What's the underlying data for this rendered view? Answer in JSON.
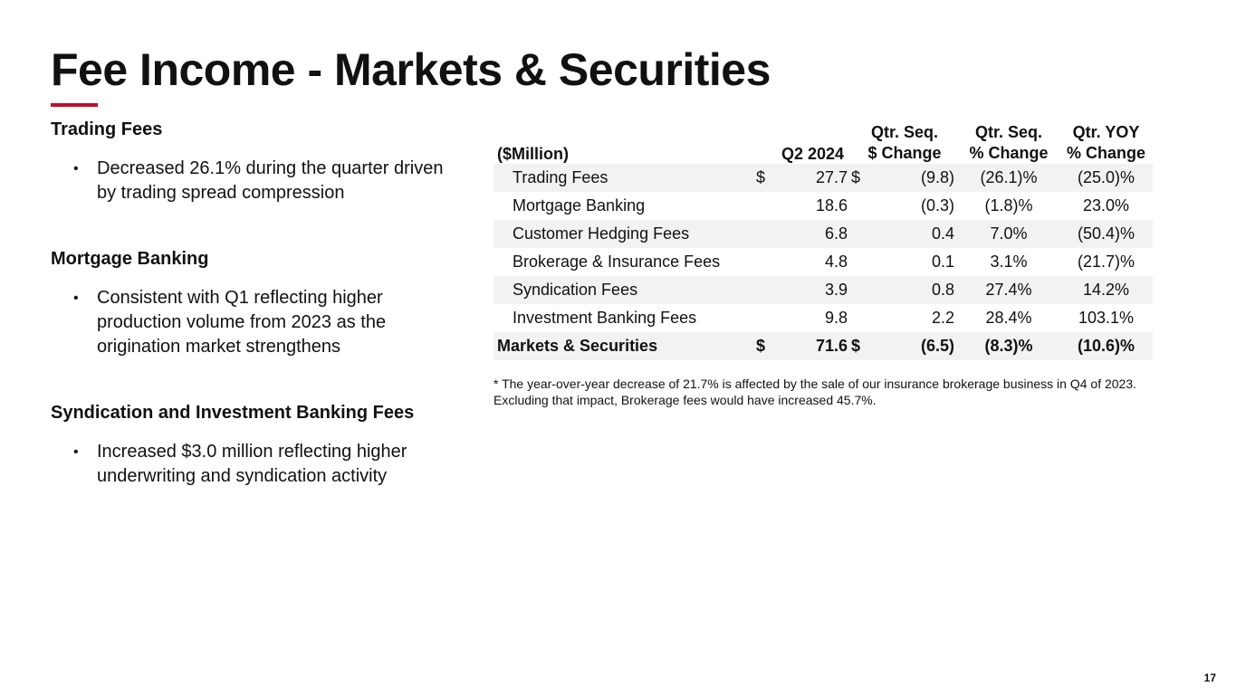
{
  "header": {
    "title": "Fee Income - Markets & Securities"
  },
  "sections": [
    {
      "heading": "Trading Fees",
      "bullets": [
        "Decreased 26.1% during the quarter driven by trading spread compression"
      ]
    },
    {
      "heading": "Mortgage Banking",
      "bullets": [
        "Consistent with Q1 reflecting higher production volume from 2023 as the origination market strengthens"
      ]
    },
    {
      "heading": "Syndication and Investment Banking Fees",
      "bullets": [
        "Increased $3.0 million reflecting higher underwriting and syndication activity"
      ]
    }
  ],
  "table": {
    "header": {
      "label": "($Million)",
      "q2_2024": "Q2 2024",
      "seq_change": [
        "Qtr. Seq.",
        "$ Change"
      ],
      "seq_pct": [
        "Qtr. Seq.",
        "% Change"
      ],
      "yoy_pct": [
        "Qtr. YOY",
        "% Change"
      ]
    },
    "rows": [
      {
        "label": "Trading Fees",
        "q2_currency": "$",
        "q2_2024": "27.7",
        "seq_currency": "$",
        "seq_change": "(9.8)",
        "seq_pct": "(26.1)%",
        "yoy_pct": "(25.0)%"
      },
      {
        "label": "Mortgage Banking",
        "q2_2024": "18.6",
        "seq_change": "(0.3)",
        "seq_pct": "(1.8)%",
        "yoy_pct": "23.0%"
      },
      {
        "label": "Customer Hedging Fees",
        "q2_2024": "6.8",
        "seq_change": "0.4",
        "seq_pct": "7.0%",
        "yoy_pct": "(50.4)%"
      },
      {
        "label": "Brokerage & Insurance Fees",
        "q2_2024": "4.8",
        "seq_change": "0.1",
        "seq_pct": "3.1%",
        "yoy_pct": "(21.7)%"
      },
      {
        "label": "Syndication Fees",
        "q2_2024": "3.9",
        "seq_change": "0.8",
        "seq_pct": "27.4%",
        "yoy_pct": "14.2%"
      },
      {
        "label": "Investment Banking Fees",
        "q2_2024": "9.8",
        "seq_change": "2.2",
        "seq_pct": "28.4%",
        "yoy_pct": "103.1%"
      },
      {
        "label": "Markets & Securities",
        "q2_currency": "$",
        "q2_2024": "71.6",
        "seq_currency": "$",
        "seq_change": "(6.5)",
        "seq_pct": "(8.3)%",
        "yoy_pct": "(10.6)%",
        "total": true
      }
    ],
    "footnote": "* The year-over-year decrease of 21.7% is affected by the sale of our insurance brokerage business in Q4 of 2023.  Excluding that impact, Brokerage fees would have increased 45.7%."
  },
  "footer": {
    "page_number": "17"
  }
}
